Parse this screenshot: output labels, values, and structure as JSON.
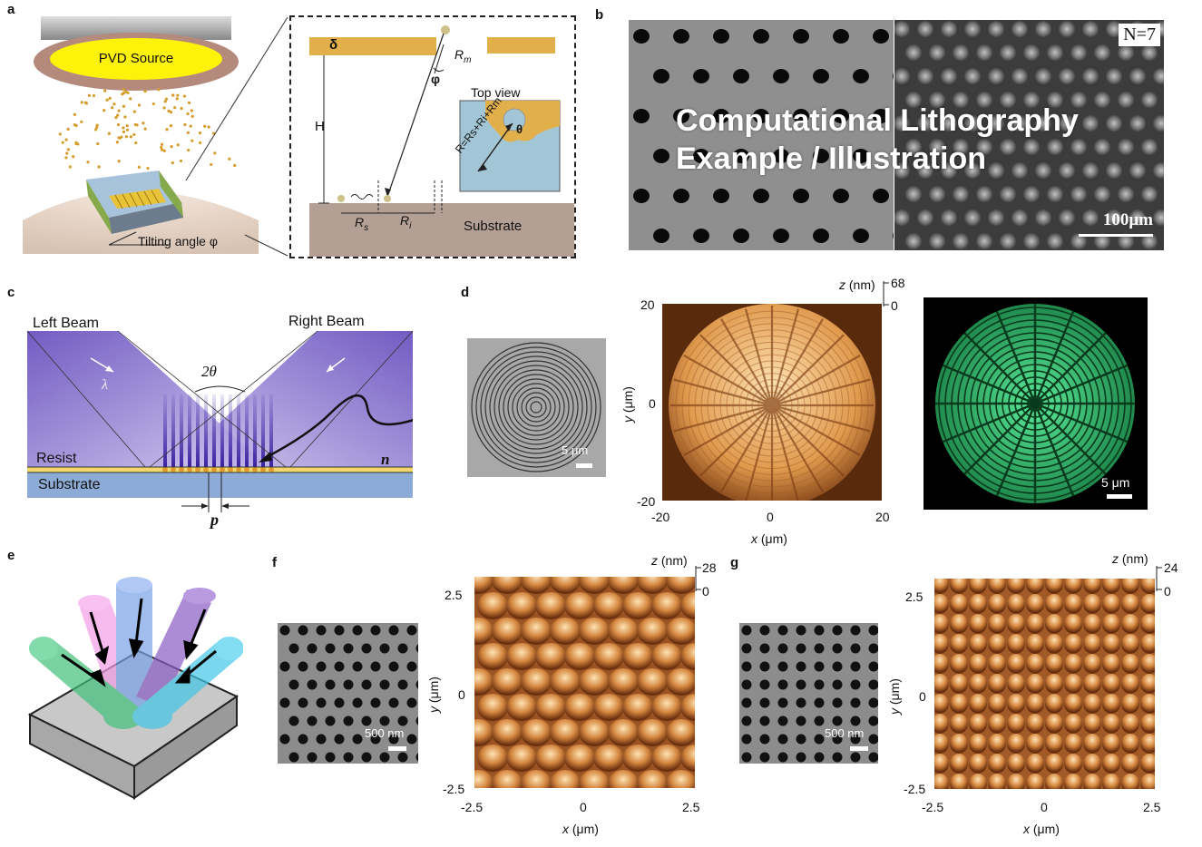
{
  "panels": {
    "a": {
      "letter": "a",
      "source_label": "PVD Source",
      "tilt_label": "Tilting angle φ",
      "delta": "δ",
      "H": "H",
      "Rm": "R",
      "Rm_sub": "m",
      "phi": "φ",
      "top_view": "Top view",
      "theta": "θ",
      "formula": "R=Rs+Ri+Rm",
      "Rs": "R",
      "Rs_sub": "s",
      "Ri": "R",
      "Ri_sub": "i",
      "substrate": "Substrate"
    },
    "b": {
      "letter": "b",
      "n_label": "N=7",
      "scale_bar": "100μm",
      "watermark_line1": "Computational Lithography",
      "watermark_line2": "Example / Illustration"
    },
    "c": {
      "letter": "c",
      "left_beam": "Left Beam",
      "right_beam": "Right Beam",
      "two_theta": "2θ",
      "lambda": "λ",
      "resist": "Resist",
      "n": "n",
      "substrate": "Substrate",
      "p": "p"
    },
    "d": {
      "letter": "d",
      "scale_sem": "5 μm",
      "scale_fluor": "5 μm",
      "z_label": "z (nm)",
      "z_max": "68",
      "z_min": "0",
      "y_label": "y (μm)",
      "x_label": "x (μm)",
      "y_ticks": [
        "20",
        "0",
        "-20"
      ],
      "x_ticks": [
        "-20",
        "0",
        "20"
      ]
    },
    "e": {
      "letter": "e"
    },
    "f": {
      "letter": "f",
      "scale": "500 nm",
      "z_label": "z (nm)",
      "z_max": "28",
      "z_min": "0",
      "y_label": "y (μm)",
      "x_label": "x (μm)",
      "y_ticks": [
        "2.5",
        "0",
        "-2.5"
      ],
      "x_ticks": [
        "-2.5",
        "0",
        "2.5"
      ]
    },
    "g": {
      "letter": "g",
      "scale": "500 nm",
      "z_label": "z (nm)",
      "z_max": "24",
      "z_min": "0",
      "y_label": "y (μm)",
      "x_label": "x (μm)",
      "y_ticks": [
        "2.5",
        "0",
        "-2.5"
      ],
      "x_ticks": [
        "-2.5",
        "0",
        "2.5"
      ]
    }
  },
  "colors": {
    "gold": "#e2b04a",
    "substrate": "#b49f94",
    "beam": "#5a3fb8",
    "fluor": "#38d07a",
    "afm_light": "#f3c98a",
    "afm_dark": "#5a2a0c"
  }
}
